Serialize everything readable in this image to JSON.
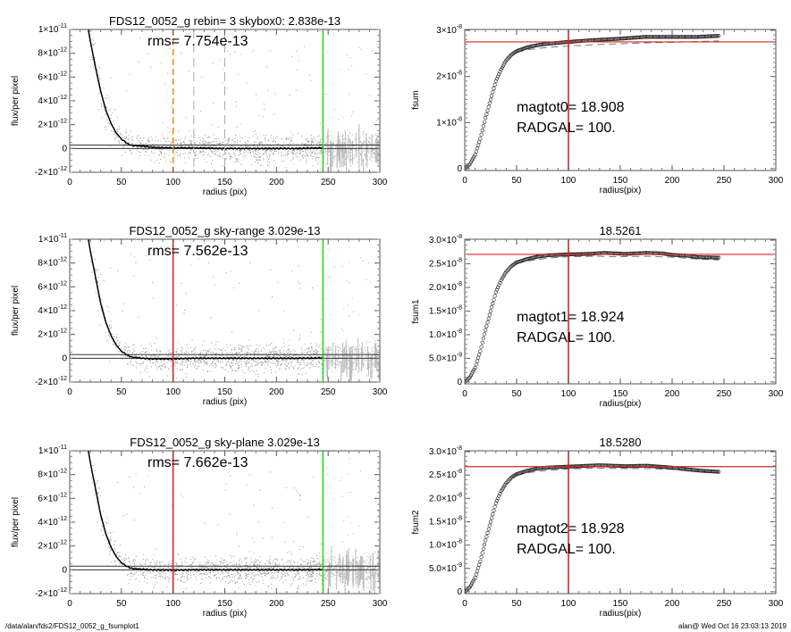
{
  "footer": {
    "path": "/data/alan/fds2/FDS12_0052_g_fsumplot1",
    "stamp": "alan@  Wed Oct 16 23:03:13 2019"
  },
  "colors": {
    "scatter": "#9a9a9a",
    "profile": "#000000",
    "green": "#22dd22",
    "red": "#dd2222",
    "orange": "#f08a1c",
    "gray_dash": "#aaaaaa"
  },
  "chart_data": [
    {
      "type": "scatter",
      "title": "FDS12_0052_g rebin= 3    skybox0:  2.838e-13",
      "annotation": "rms= 7.754e-13",
      "xlabel": "radius (pix)",
      "ylabel": "flux/per pixel",
      "xlim": [
        0,
        300
      ],
      "ylim": [
        -2e-12,
        1e-11
      ],
      "xticks": [
        "0",
        "50",
        "100",
        "150",
        "200",
        "250",
        "300"
      ],
      "yticks": [
        {
          "v": 1e-11,
          "m": "1×10",
          "e": "-11"
        },
        {
          "v": 8e-12,
          "m": "8×10",
          "e": "-12"
        },
        {
          "v": 6e-12,
          "m": "6×10",
          "e": "-12"
        },
        {
          "v": 4e-12,
          "m": "4×10",
          "e": "-12"
        },
        {
          "v": 2e-12,
          "m": "2×10",
          "e": "-12"
        },
        {
          "v": 0,
          "m": "0",
          "e": ""
        },
        {
          "v": -2e-12,
          "m": "-2×10",
          "e": "-12"
        }
      ],
      "profile": {
        "r": [
          18,
          20,
          25,
          30,
          35,
          40,
          45,
          50,
          55,
          60,
          70,
          80,
          100,
          120,
          150,
          180,
          200,
          220,
          245
        ],
        "v": [
          1e-11,
          9e-12,
          6.8e-12,
          4.8e-12,
          3.2e-12,
          2.1e-12,
          1.3e-12,
          8e-13,
          4.5e-13,
          2.5e-13,
          2e-13,
          1e-13,
          5e-14,
          5e-14,
          0.0,
          0.0,
          0.0,
          0.0,
          5e-14
        ]
      },
      "hlines": [
        0,
        2.838e-13
      ],
      "vlines": [
        {
          "x": 100,
          "color": "orange",
          "style": "dashed"
        },
        {
          "x": 120,
          "color": "gray_dash",
          "style": "dashed"
        },
        {
          "x": 150,
          "color": "gray_dash",
          "style": "dashed"
        },
        {
          "x": 245,
          "color": "green",
          "style": "solid"
        }
      ]
    },
    {
      "type": "line",
      "title": "",
      "annotation": [
        "magtot0=  18.908",
        "RADGAL=    100."
      ],
      "xlabel": "radius(pix)",
      "ylabel": "fsum",
      "xlim": [
        0,
        300
      ],
      "ylim": [
        0,
        3e-08
      ],
      "xticks": [
        "0",
        "50",
        "100",
        "150",
        "200",
        "250",
        "300"
      ],
      "yticks": [
        {
          "v": 3e-08,
          "m": "3×10",
          "e": "-8"
        },
        {
          "v": 2e-08,
          "m": "2×10",
          "e": "-8"
        },
        {
          "v": 1e-08,
          "m": "1×10",
          "e": "-8"
        },
        {
          "v": 0,
          "m": "0",
          "e": ""
        }
      ],
      "curve": {
        "r": [
          0,
          5,
          10,
          15,
          20,
          25,
          30,
          35,
          40,
          45,
          50,
          60,
          70,
          80,
          100,
          125,
          150,
          175,
          200,
          225,
          245
        ],
        "v": [
          0,
          1e-09,
          3e-09,
          6.5e-09,
          1.1e-08,
          1.5e-08,
          1.9e-08,
          2.15e-08,
          2.35e-08,
          2.47e-08,
          2.55e-08,
          2.63e-08,
          2.68e-08,
          2.71e-08,
          2.75e-08,
          2.79e-08,
          2.82e-08,
          2.86e-08,
          2.86e-08,
          2.86e-08,
          2.88e-08
        ]
      },
      "dashed": {
        "r": [
          50,
          60,
          80,
          100,
          125,
          150,
          175,
          200,
          225,
          245
        ],
        "v": [
          2.52e-08,
          2.58e-08,
          2.63e-08,
          2.66e-08,
          2.69e-08,
          2.71e-08,
          2.73e-08,
          2.74e-08,
          2.76e-08,
          2.77e-08
        ]
      },
      "hline": 2.75e-08,
      "vline": 100
    },
    {
      "type": "scatter",
      "title": "FDS12_0052_g sky-range  3.029e-13",
      "annotation": "rms= 7.562e-13",
      "xlabel": "radius (pix)",
      "ylabel": "flux/per pixel",
      "xlim": [
        0,
        300
      ],
      "ylim": [
        -2e-12,
        1e-11
      ],
      "xticks": [
        "0",
        "50",
        "100",
        "150",
        "200",
        "250",
        "300"
      ],
      "yticks": [
        {
          "v": 1e-11,
          "m": "1×10",
          "e": "-11"
        },
        {
          "v": 8e-12,
          "m": "8×10",
          "e": "-12"
        },
        {
          "v": 6e-12,
          "m": "6×10",
          "e": "-12"
        },
        {
          "v": 4e-12,
          "m": "4×10",
          "e": "-12"
        },
        {
          "v": 2e-12,
          "m": "2×10",
          "e": "-12"
        },
        {
          "v": 0,
          "m": "0",
          "e": ""
        },
        {
          "v": -2e-12,
          "m": "-2×10",
          "e": "-12"
        }
      ],
      "profile": {
        "r": [
          18,
          20,
          25,
          30,
          35,
          40,
          45,
          50,
          55,
          60,
          70,
          80,
          100,
          120,
          150,
          180,
          200,
          220,
          245
        ],
        "v": [
          1e-11,
          9e-12,
          6.8e-12,
          4.6e-12,
          3e-12,
          1.9e-12,
          1.1e-12,
          6e-13,
          3e-13,
          1e-13,
          0.0,
          -5e-14,
          -5e-14,
          0.0,
          0.0,
          0.0,
          0.0,
          0.0,
          2e-14
        ]
      },
      "hlines": [
        0,
        3.029e-13
      ],
      "vlines": [
        {
          "x": 100,
          "color": "red",
          "style": "solid"
        },
        {
          "x": 245,
          "color": "green",
          "style": "solid"
        }
      ]
    },
    {
      "type": "line",
      "title": "18.5261",
      "annotation": [
        "magtot1=  18.924",
        "RADGAL=    100."
      ],
      "xlabel": "radius(pix)",
      "ylabel": "fsum1",
      "xlim": [
        0,
        300
      ],
      "ylim": [
        0,
        3e-08
      ],
      "xticks": [
        "0",
        "50",
        "100",
        "150",
        "200",
        "250",
        "300"
      ],
      "yticks": [
        {
          "v": 3e-08,
          "m": "3.0×10",
          "e": "-8"
        },
        {
          "v": 2.5e-08,
          "m": "2.5×10",
          "e": "-8"
        },
        {
          "v": 2e-08,
          "m": "2.0×10",
          "e": "-8"
        },
        {
          "v": 1.5e-08,
          "m": "1.5×10",
          "e": "-8"
        },
        {
          "v": 1e-08,
          "m": "1.0×10",
          "e": "-8"
        },
        {
          "v": 5e-09,
          "m": "5.0×10",
          "e": "-9"
        },
        {
          "v": 0,
          "m": "0",
          "e": ""
        }
      ],
      "curve": {
        "r": [
          0,
          5,
          10,
          15,
          20,
          25,
          30,
          35,
          40,
          45,
          50,
          60,
          70,
          80,
          100,
          120,
          135,
          155,
          175,
          190,
          200,
          215,
          225,
          245
        ],
        "v": [
          0,
          1e-09,
          3e-09,
          6.5e-09,
          1.1e-08,
          1.5e-08,
          1.9e-08,
          2.15e-08,
          2.33e-08,
          2.45e-08,
          2.53e-08,
          2.6e-08,
          2.65e-08,
          2.68e-08,
          2.7e-08,
          2.71e-08,
          2.73e-08,
          2.71e-08,
          2.73e-08,
          2.72e-08,
          2.69e-08,
          2.67e-08,
          2.64e-08,
          2.63e-08
        ]
      },
      "dashed": {
        "r": [
          50,
          60,
          80,
          100,
          125,
          150,
          175,
          200,
          225,
          245
        ],
        "v": [
          2.5e-08,
          2.56e-08,
          2.62e-08,
          2.65e-08,
          2.66e-08,
          2.65e-08,
          2.66e-08,
          2.64e-08,
          2.6e-08,
          2.58e-08
        ]
      },
      "hline": 2.7e-08,
      "vline": 100
    },
    {
      "type": "scatter",
      "title": "FDS12_0052_g sky-plane  3.029e-13",
      "annotation": "rms= 7.662e-13",
      "xlabel": "radius (pix)",
      "ylabel": "flux/per pixel",
      "xlim": [
        0,
        300
      ],
      "ylim": [
        -2e-12,
        1e-11
      ],
      "xticks": [
        "0",
        "50",
        "100",
        "150",
        "200",
        "250",
        "300"
      ],
      "yticks": [
        {
          "v": 1e-11,
          "m": "1×10",
          "e": "-11"
        },
        {
          "v": 8e-12,
          "m": "8×10",
          "e": "-12"
        },
        {
          "v": 6e-12,
          "m": "6×10",
          "e": "-12"
        },
        {
          "v": 4e-12,
          "m": "4×10",
          "e": "-12"
        },
        {
          "v": 2e-12,
          "m": "2×10",
          "e": "-12"
        },
        {
          "v": 0,
          "m": "0",
          "e": ""
        },
        {
          "v": -2e-12,
          "m": "-2×10",
          "e": "-12"
        }
      ],
      "profile": {
        "r": [
          18,
          20,
          25,
          30,
          35,
          40,
          45,
          50,
          55,
          60,
          70,
          80,
          100,
          120,
          150,
          180,
          200,
          220,
          245
        ],
        "v": [
          1e-11,
          9e-12,
          6.8e-12,
          4.6e-12,
          3e-12,
          1.9e-12,
          1.1e-12,
          6e-13,
          3e-13,
          1.2e-13,
          5e-14,
          0.0,
          -3e-14,
          0.0,
          0.0,
          0.0,
          0.0,
          0.0,
          2e-14
        ]
      },
      "hlines": [
        0,
        3.029e-13
      ],
      "vlines": [
        {
          "x": 100,
          "color": "red",
          "style": "solid"
        },
        {
          "x": 245,
          "color": "green",
          "style": "solid"
        }
      ]
    },
    {
      "type": "line",
      "title": "18.5280",
      "annotation": [
        "magtot2=  18.928",
        "RADGAL=    100."
      ],
      "xlabel": "radius(pix)",
      "ylabel": "fsum2",
      "xlim": [
        0,
        300
      ],
      "ylim": [
        0,
        3e-08
      ],
      "xticks": [
        "0",
        "50",
        "100",
        "150",
        "200",
        "250",
        "300"
      ],
      "yticks": [
        {
          "v": 3e-08,
          "m": "3.0×10",
          "e": "-8"
        },
        {
          "v": 2.5e-08,
          "m": "2.5×10",
          "e": "-8"
        },
        {
          "v": 2e-08,
          "m": "2.0×10",
          "e": "-8"
        },
        {
          "v": 1.5e-08,
          "m": "1.5×10",
          "e": "-8"
        },
        {
          "v": 1e-08,
          "m": "1.0×10",
          "e": "-8"
        },
        {
          "v": 5e-09,
          "m": "5.0×10",
          "e": "-9"
        },
        {
          "v": 0,
          "m": "0",
          "e": ""
        }
      ],
      "curve": {
        "r": [
          0,
          5,
          10,
          15,
          20,
          25,
          30,
          35,
          40,
          45,
          50,
          60,
          70,
          80,
          100,
          130,
          155,
          175,
          200,
          215,
          230,
          245
        ],
        "v": [
          0,
          1e-09,
          3e-09,
          6.5e-09,
          1.1e-08,
          1.5e-08,
          1.9e-08,
          2.15e-08,
          2.33e-08,
          2.45e-08,
          2.52e-08,
          2.59e-08,
          2.64e-08,
          2.66e-08,
          2.68e-08,
          2.71e-08,
          2.69e-08,
          2.7e-08,
          2.66e-08,
          2.62e-08,
          2.59e-08,
          2.57e-08
        ]
      },
      "dashed": {
        "r": [
          50,
          60,
          80,
          100,
          125,
          150,
          175,
          200,
          225,
          245
        ],
        "v": [
          2.49e-08,
          2.55e-08,
          2.6e-08,
          2.63e-08,
          2.65e-08,
          2.64e-08,
          2.64e-08,
          2.62e-08,
          2.58e-08,
          2.55e-08
        ]
      },
      "hline": 2.68e-08,
      "vline": 100
    }
  ]
}
